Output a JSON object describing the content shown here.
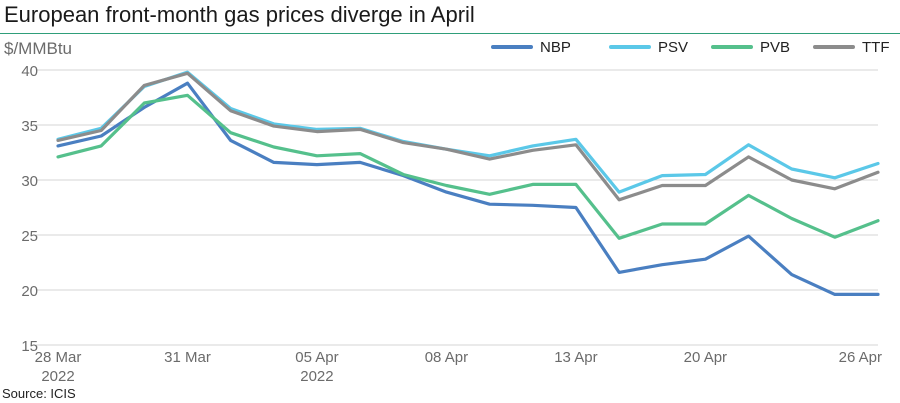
{
  "title": "European front-month gas prices diverge in April",
  "unit_label": "$/MMBtu",
  "source": "Source: ICIS",
  "chart_data": {
    "type": "line",
    "title": "European front-month gas prices diverge in April",
    "ylabel": "$/MMBtu",
    "ylim": [
      15,
      40
    ],
    "yticks": [
      15,
      20,
      25,
      30,
      35,
      40
    ],
    "grid": true,
    "legend": "top-right",
    "x": [
      "2022-03-28",
      "2022-03-29",
      "2022-03-30",
      "2022-03-31",
      "2022-04-01",
      "2022-04-04",
      "2022-04-05",
      "2022-04-06",
      "2022-04-07",
      "2022-04-08",
      "2022-04-11",
      "2022-04-12",
      "2022-04-13",
      "2022-04-14",
      "2022-04-19",
      "2022-04-20",
      "2022-04-21",
      "2022-04-22",
      "2022-04-25",
      "2022-04-26"
    ],
    "x_tick_labels": [
      {
        "x": "2022-03-28",
        "line1": "28 Mar",
        "line2": "2022"
      },
      {
        "x": "2022-03-31",
        "line1": "31 Mar",
        "line2": ""
      },
      {
        "x": "2022-04-05",
        "line1": "05 Apr",
        "line2": "2022"
      },
      {
        "x": "2022-04-08",
        "line1": "08 Apr",
        "line2": ""
      },
      {
        "x": "2022-04-13",
        "line1": "13 Apr",
        "line2": ""
      },
      {
        "x": "2022-04-20",
        "line1": "20 Apr",
        "line2": ""
      },
      {
        "x": "2022-04-26",
        "line1": "26 Apr",
        "line2": ""
      }
    ],
    "series": [
      {
        "name": "NBP",
        "color": "#4a7fc1",
        "values": [
          33.1,
          34.0,
          36.6,
          38.8,
          33.6,
          31.6,
          31.4,
          31.6,
          30.4,
          28.9,
          27.8,
          27.7,
          27.5,
          21.6,
          22.3,
          22.8,
          24.9,
          21.4,
          19.6,
          19.6
        ]
      },
      {
        "name": "PSV",
        "color": "#5bc8e8",
        "values": [
          33.7,
          34.7,
          38.5,
          39.8,
          36.5,
          35.1,
          34.6,
          34.7,
          33.5,
          32.8,
          32.2,
          33.1,
          33.7,
          28.9,
          30.4,
          30.5,
          33.2,
          31.0,
          30.2,
          31.5
        ]
      },
      {
        "name": "PVB",
        "color": "#55c08c",
        "values": [
          32.1,
          33.1,
          37.0,
          37.7,
          34.3,
          33.0,
          32.2,
          32.4,
          30.5,
          29.5,
          28.7,
          29.6,
          29.6,
          24.7,
          26.0,
          26.0,
          28.6,
          26.5,
          24.8,
          26.3
        ]
      },
      {
        "name": "TTF",
        "color": "#8c8c8c",
        "values": [
          33.6,
          34.5,
          38.6,
          39.7,
          36.3,
          34.9,
          34.4,
          34.6,
          33.4,
          32.8,
          31.9,
          32.7,
          33.2,
          28.2,
          29.5,
          29.5,
          32.1,
          30.0,
          29.2,
          30.7
        ]
      }
    ]
  }
}
